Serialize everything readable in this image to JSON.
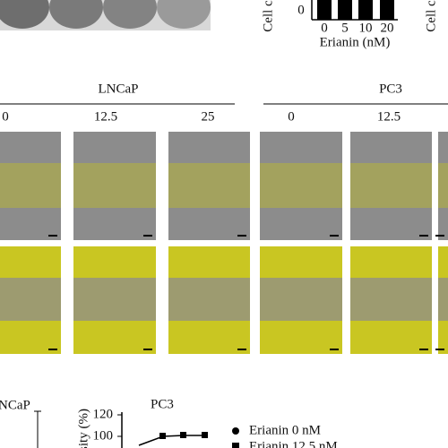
{
  "top": {
    "left_axis_label": "Cell c",
    "y_tick": "0",
    "x_ticks": [
      "0",
      "5",
      "10",
      "20"
    ],
    "x_axis_label": "Erianin (nM)",
    "right_axis_label": "Cell c"
  },
  "header": {
    "groups": [
      {
        "label": "LNCaP",
        "doses": [
          "0",
          "12.5",
          "25"
        ]
      },
      {
        "label": "PC3",
        "doses": [
          "0",
          "12.5"
        ]
      }
    ]
  },
  "bottom": {
    "left_panel_label": "NCaP",
    "panel_label": "PC3",
    "y_axis_label": "sity (%)",
    "y_ticks": [
      "120",
      "100"
    ],
    "legend": [
      "Erianin 0 nM",
      "Erianin 12.5 nM"
    ]
  }
}
